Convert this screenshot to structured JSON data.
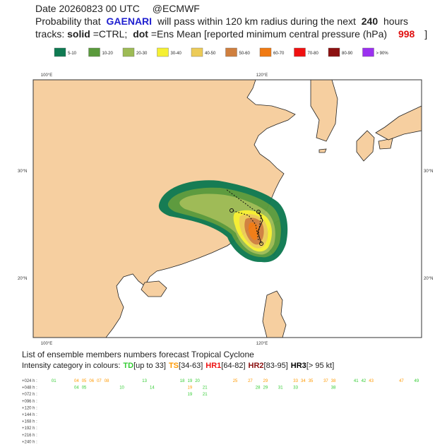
{
  "header": {
    "date": "Date 20260823 00 UTC",
    "source": "@ECMWF",
    "line2": [
      "Probability that",
      "GAENARI",
      "will pass within 120 km radius during the next",
      "240",
      "hours"
    ],
    "line3": [
      "tracks:",
      "solid",
      "=CTRL;",
      "dot",
      "=Ens Mean [reported minimum central pressure (hPa)",
      "998",
      "]"
    ]
  },
  "legend": {
    "items": [
      {
        "label": "5-10",
        "color": "#0f7a52"
      },
      {
        "label": "10-20",
        "color": "#5a9a3c"
      },
      {
        "label": "20-30",
        "color": "#9dbb55"
      },
      {
        "label": "30-40",
        "color": "#f5f032"
      },
      {
        "label": "40-50",
        "color": "#eccb58"
      },
      {
        "label": "50-60",
        "color": "#cf7f3e"
      },
      {
        "label": "60-70",
        "color": "#f07a12"
      },
      {
        "label": "70-80",
        "color": "#f01010"
      },
      {
        "label": "80-90",
        "color": "#8c1010"
      },
      {
        "label": "> 90%",
        "color": "#9b30f0"
      }
    ]
  },
  "map": {
    "lon_labels": [
      "100°E",
      "120°E"
    ],
    "lat_labels": [
      "30°N",
      "20°N"
    ]
  },
  "members": {
    "title": "List of ensemble members numbers forecast Tropical Cyclone",
    "intro": "Intensity category in colours:",
    "categories": [
      {
        "name": "TD",
        "range": "[up to 33]",
        "color": "#33cc33"
      },
      {
        "name": "TS",
        "range": "[34-63]",
        "color": "#ff9900"
      },
      {
        "name": "HR1",
        "range": "[64-82]",
        "color": "#ee1111"
      },
      {
        "name": "HR2",
        "range": "[83-95]",
        "color": "#8b1010"
      },
      {
        "name": "HR3",
        "range": "[> 95 kt]",
        "color": "#000000"
      }
    ],
    "rows": [
      {
        "label": "+024 h :",
        "members": [
          {
            "n": "01",
            "color": "#33cc33"
          },
          {
            "n": "04",
            "color": "#ff9900"
          },
          {
            "n": "05",
            "color": "#ff9900"
          },
          {
            "n": "06",
            "color": "#ff9900"
          },
          {
            "n": "07",
            "color": "#ff9900"
          },
          {
            "n": "08",
            "color": "#ff9900"
          },
          {
            "n": "13",
            "color": "#33cc33"
          },
          {
            "n": "18",
            "color": "#33cc33"
          },
          {
            "n": "19",
            "color": "#33cc33"
          },
          {
            "n": "20",
            "color": "#33cc33"
          },
          {
            "n": "25",
            "color": "#ff9900"
          },
          {
            "n": "27",
            "color": "#ff9900"
          },
          {
            "n": "29",
            "color": "#ff9900"
          },
          {
            "n": "33",
            "color": "#ff9900"
          },
          {
            "n": "34",
            "color": "#ff9900"
          },
          {
            "n": "35",
            "color": "#ff9900"
          },
          {
            "n": "37",
            "color": "#ff9900"
          },
          {
            "n": "38",
            "color": "#ff9900"
          },
          {
            "n": "41",
            "color": "#33cc33"
          },
          {
            "n": "42",
            "color": "#33cc33"
          },
          {
            "n": "43",
            "color": "#ff9900"
          },
          {
            "n": "47",
            "color": "#ff9900"
          },
          {
            "n": "49",
            "color": "#33cc33"
          }
        ]
      },
      {
        "label": "+048 h :",
        "members": [
          {
            "n": "04",
            "color": "#33cc33"
          },
          {
            "n": "05",
            "color": "#33cc33"
          },
          {
            "n": "10",
            "color": "#33cc33"
          },
          {
            "n": "14",
            "color": "#33cc33"
          },
          {
            "n": "19",
            "color": "#ff9900"
          },
          {
            "n": "21",
            "color": "#33cc33"
          },
          {
            "n": "28",
            "color": "#33cc33"
          },
          {
            "n": "29",
            "color": "#33cc33"
          },
          {
            "n": "31",
            "color": "#33cc33"
          },
          {
            "n": "33",
            "color": "#33cc33"
          },
          {
            "n": "38",
            "color": "#33cc33"
          }
        ]
      },
      {
        "label": "+072 h :",
        "members": [
          {
            "n": "19",
            "color": "#33cc33"
          },
          {
            "n": "21",
            "color": "#33cc33"
          }
        ]
      },
      {
        "label": "+096 h :",
        "members": []
      },
      {
        "label": "+120 h :",
        "members": []
      },
      {
        "label": "+144 h :",
        "members": []
      },
      {
        "label": "+168 h :",
        "members": []
      },
      {
        "label": "+192 h :",
        "members": []
      },
      {
        "label": "+216 h :",
        "members": []
      },
      {
        "label": "+240 h :",
        "members": []
      }
    ]
  }
}
